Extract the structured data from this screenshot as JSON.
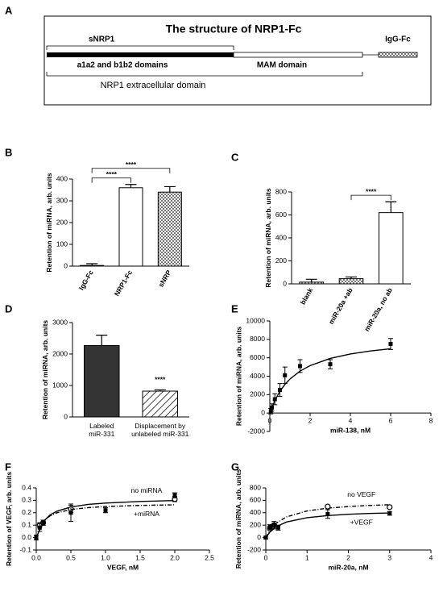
{
  "diagram": {
    "panel": "A",
    "title": "The structure of NRP1-Fc",
    "snrp1": "sNRP1",
    "igg": "IgG-Fc",
    "domains": "a1a2 and b1b2 domains",
    "mam": "MAM domain",
    "extracellular": "NRP1 extracellular domain"
  },
  "chart_data": [
    {
      "type": "bar",
      "panel": "B",
      "ylabel": "Retention of miRNA, arb. units",
      "categories": [
        "IgG-Fc",
        "NRP1-Fc",
        "sNRP"
      ],
      "values": [
        3,
        360,
        340
      ],
      "errors": [
        8,
        15,
        25
      ],
      "fills": [
        "white",
        "white",
        "checker"
      ],
      "rotate_categories": true,
      "ylim": [
        0,
        400
      ],
      "yticks": [
        0,
        100,
        200,
        300,
        400
      ],
      "significance": [
        {
          "from": 0,
          "to": 1,
          "label": "****"
        },
        {
          "from": 0,
          "to": 2,
          "label": "****"
        }
      ]
    },
    {
      "type": "bar",
      "panel": "C",
      "ylabel": "Retention of miRNA, arb. units",
      "categories": [
        "blank",
        "miR-20a +ab",
        "miR-20a, no ab"
      ],
      "values": [
        15,
        45,
        620
      ],
      "errors": [
        25,
        15,
        95
      ],
      "fills": [
        "checker",
        "checker",
        "white"
      ],
      "rotate_categories": true,
      "ylim": [
        0,
        800
      ],
      "yticks": [
        0,
        200,
        400,
        600,
        800
      ],
      "significance": [
        {
          "from": 1,
          "to": 2,
          "label": "****"
        }
      ]
    },
    {
      "type": "bar",
      "panel": "D",
      "ylabel": "Retention of miRNA, arb. units",
      "categories": [
        "Labeled\nmiR-331",
        "Displacement by\nunlabeled miR-331"
      ],
      "values": [
        2270,
        820
      ],
      "errors": [
        330,
        40
      ],
      "fills": [
        "dark",
        "hatch"
      ],
      "rotate_categories": false,
      "ylim": [
        0,
        3000
      ],
      "yticks": [
        0,
        1000,
        2000,
        3000
      ],
      "significance": [
        {
          "from": 1,
          "to": 1,
          "label": "****"
        }
      ]
    },
    {
      "type": "scatter",
      "panel": "E",
      "ylabel": "Retention of miRNA, arb. units",
      "xlabel": "miR-138, nM",
      "x_axis_at_zero": true,
      "xlim": [
        0,
        8
      ],
      "xticks": [
        0,
        2,
        4,
        6,
        8
      ],
      "ylim": [
        -2000,
        10000
      ],
      "yticks": [
        -2000,
        0,
        2000,
        4000,
        6000,
        8000,
        10000
      ],
      "series": [
        {
          "marker": "square",
          "line": "solid",
          "x": [
            0.05,
            0.1,
            0.25,
            0.5,
            0.75,
            1.5,
            3,
            6
          ],
          "values": [
            200,
            600,
            1500,
            2500,
            4100,
            5100,
            5300,
            7500
          ],
          "errors": [
            300,
            400,
            600,
            700,
            900,
            700,
            500,
            600
          ],
          "fit": {
            "x": [
              0,
              0.25,
              0.5,
              0.75,
              1,
              1.5,
              2,
              3,
              4,
              5,
              6
            ],
            "values": [
              0,
              1371,
              2361,
              3110,
              3696,
              4554,
              5152,
              5930,
              6415,
              6746,
              6986
            ]
          }
        }
      ]
    },
    {
      "type": "scatter",
      "panel": "F",
      "ylabel": "Retention of VEGF, arb. units",
      "xlabel": "VEGF, nM",
      "x_axis_at_zero": false,
      "xlim": [
        0,
        2.5
      ],
      "xticks": [
        {
          "value": 0,
          "label": "0.0"
        },
        0.5,
        {
          "value": 1,
          "label": "1.0"
        },
        1.5,
        {
          "value": 2,
          "label": "2.0"
        },
        2.5
      ],
      "ylim": [
        -0.1,
        0.4
      ],
      "yticks": [
        -0.1,
        {
          "value": 0,
          "label": "0.0"
        },
        0.1,
        0.2,
        0.3,
        0.4
      ],
      "series": [
        {
          "name": "no miRNA",
          "marker": "circle-open",
          "line": "solid",
          "x": [
            0.05,
            0.1,
            0.5,
            2
          ],
          "values": [
            0.1,
            0.12,
            0.23,
            0.31
          ],
          "errors": [
            0.02,
            0.02,
            0.03,
            0.02
          ],
          "fit": {
            "x": [
              0,
              0.1,
              0.2,
              0.3,
              0.5,
              0.75,
              1,
              1.5,
              2
            ],
            "values": [
              0,
              0.128,
              0.183,
              0.213,
              0.246,
              0.267,
              0.278,
              0.291,
              0.298
            ]
          }
        },
        {
          "name": "+miRNA",
          "marker": "square",
          "line": "dashdot",
          "x": [
            0,
            0.05,
            0.1,
            0.5,
            1,
            2
          ],
          "values": [
            0,
            0.08,
            0.12,
            0.2,
            0.22,
            0.34
          ],
          "errors": [
            0.02,
            0.03,
            0.02,
            0.07,
            0.02,
            0.02
          ],
          "fit": {
            "x": [
              0,
              0.1,
              0.2,
              0.3,
              0.5,
              0.75,
              1,
              1.5,
              2
            ],
            "values": [
              0,
              0.127,
              0.175,
              0.2,
              0.226,
              0.241,
              0.25,
              0.259,
              0.264
            ]
          }
        }
      ]
    },
    {
      "type": "scatter",
      "panel": "G",
      "ylabel": "Retention of miRNA, arb. units",
      "xlabel": "miR-20a, nM",
      "x_axis_at_zero": false,
      "xlim": [
        0,
        4
      ],
      "xticks": [
        0,
        1,
        2,
        3,
        4
      ],
      "ylim": [
        -200,
        800
      ],
      "yticks": [
        -200,
        0,
        200,
        400,
        600,
        800
      ],
      "series": [
        {
          "name": "no VEGF",
          "marker": "circle-open",
          "line": "dashdot",
          "x": [
            0.1,
            0.2,
            1.5,
            3
          ],
          "values": [
            150,
            200,
            500,
            490
          ],
          "errors": [
            30,
            30,
            20,
            20
          ],
          "fit": {
            "x": [
              0,
              0.1,
              0.25,
              0.5,
              1,
              1.5,
              2,
              2.5,
              3
            ],
            "values": [
              0,
              120,
              231,
              333,
              429,
              474,
              500,
              517,
              529
            ]
          }
        },
        {
          "name": "+VEGF",
          "marker": "square",
          "line": "solid",
          "x": [
            0,
            0.1,
            0.2,
            0.3,
            1.5,
            3
          ],
          "values": [
            0,
            170,
            200,
            160,
            380,
            390
          ],
          "errors": [
            20,
            40,
            60,
            40,
            70,
            30
          ],
          "fit": {
            "x": [
              0,
              0.1,
              0.25,
              0.5,
              1,
              1.5,
              2,
              2.5,
              3
            ],
            "values": [
              0,
              90,
              173,
              250,
              321,
              355,
              375,
              388,
              397
            ]
          }
        }
      ]
    }
  ]
}
